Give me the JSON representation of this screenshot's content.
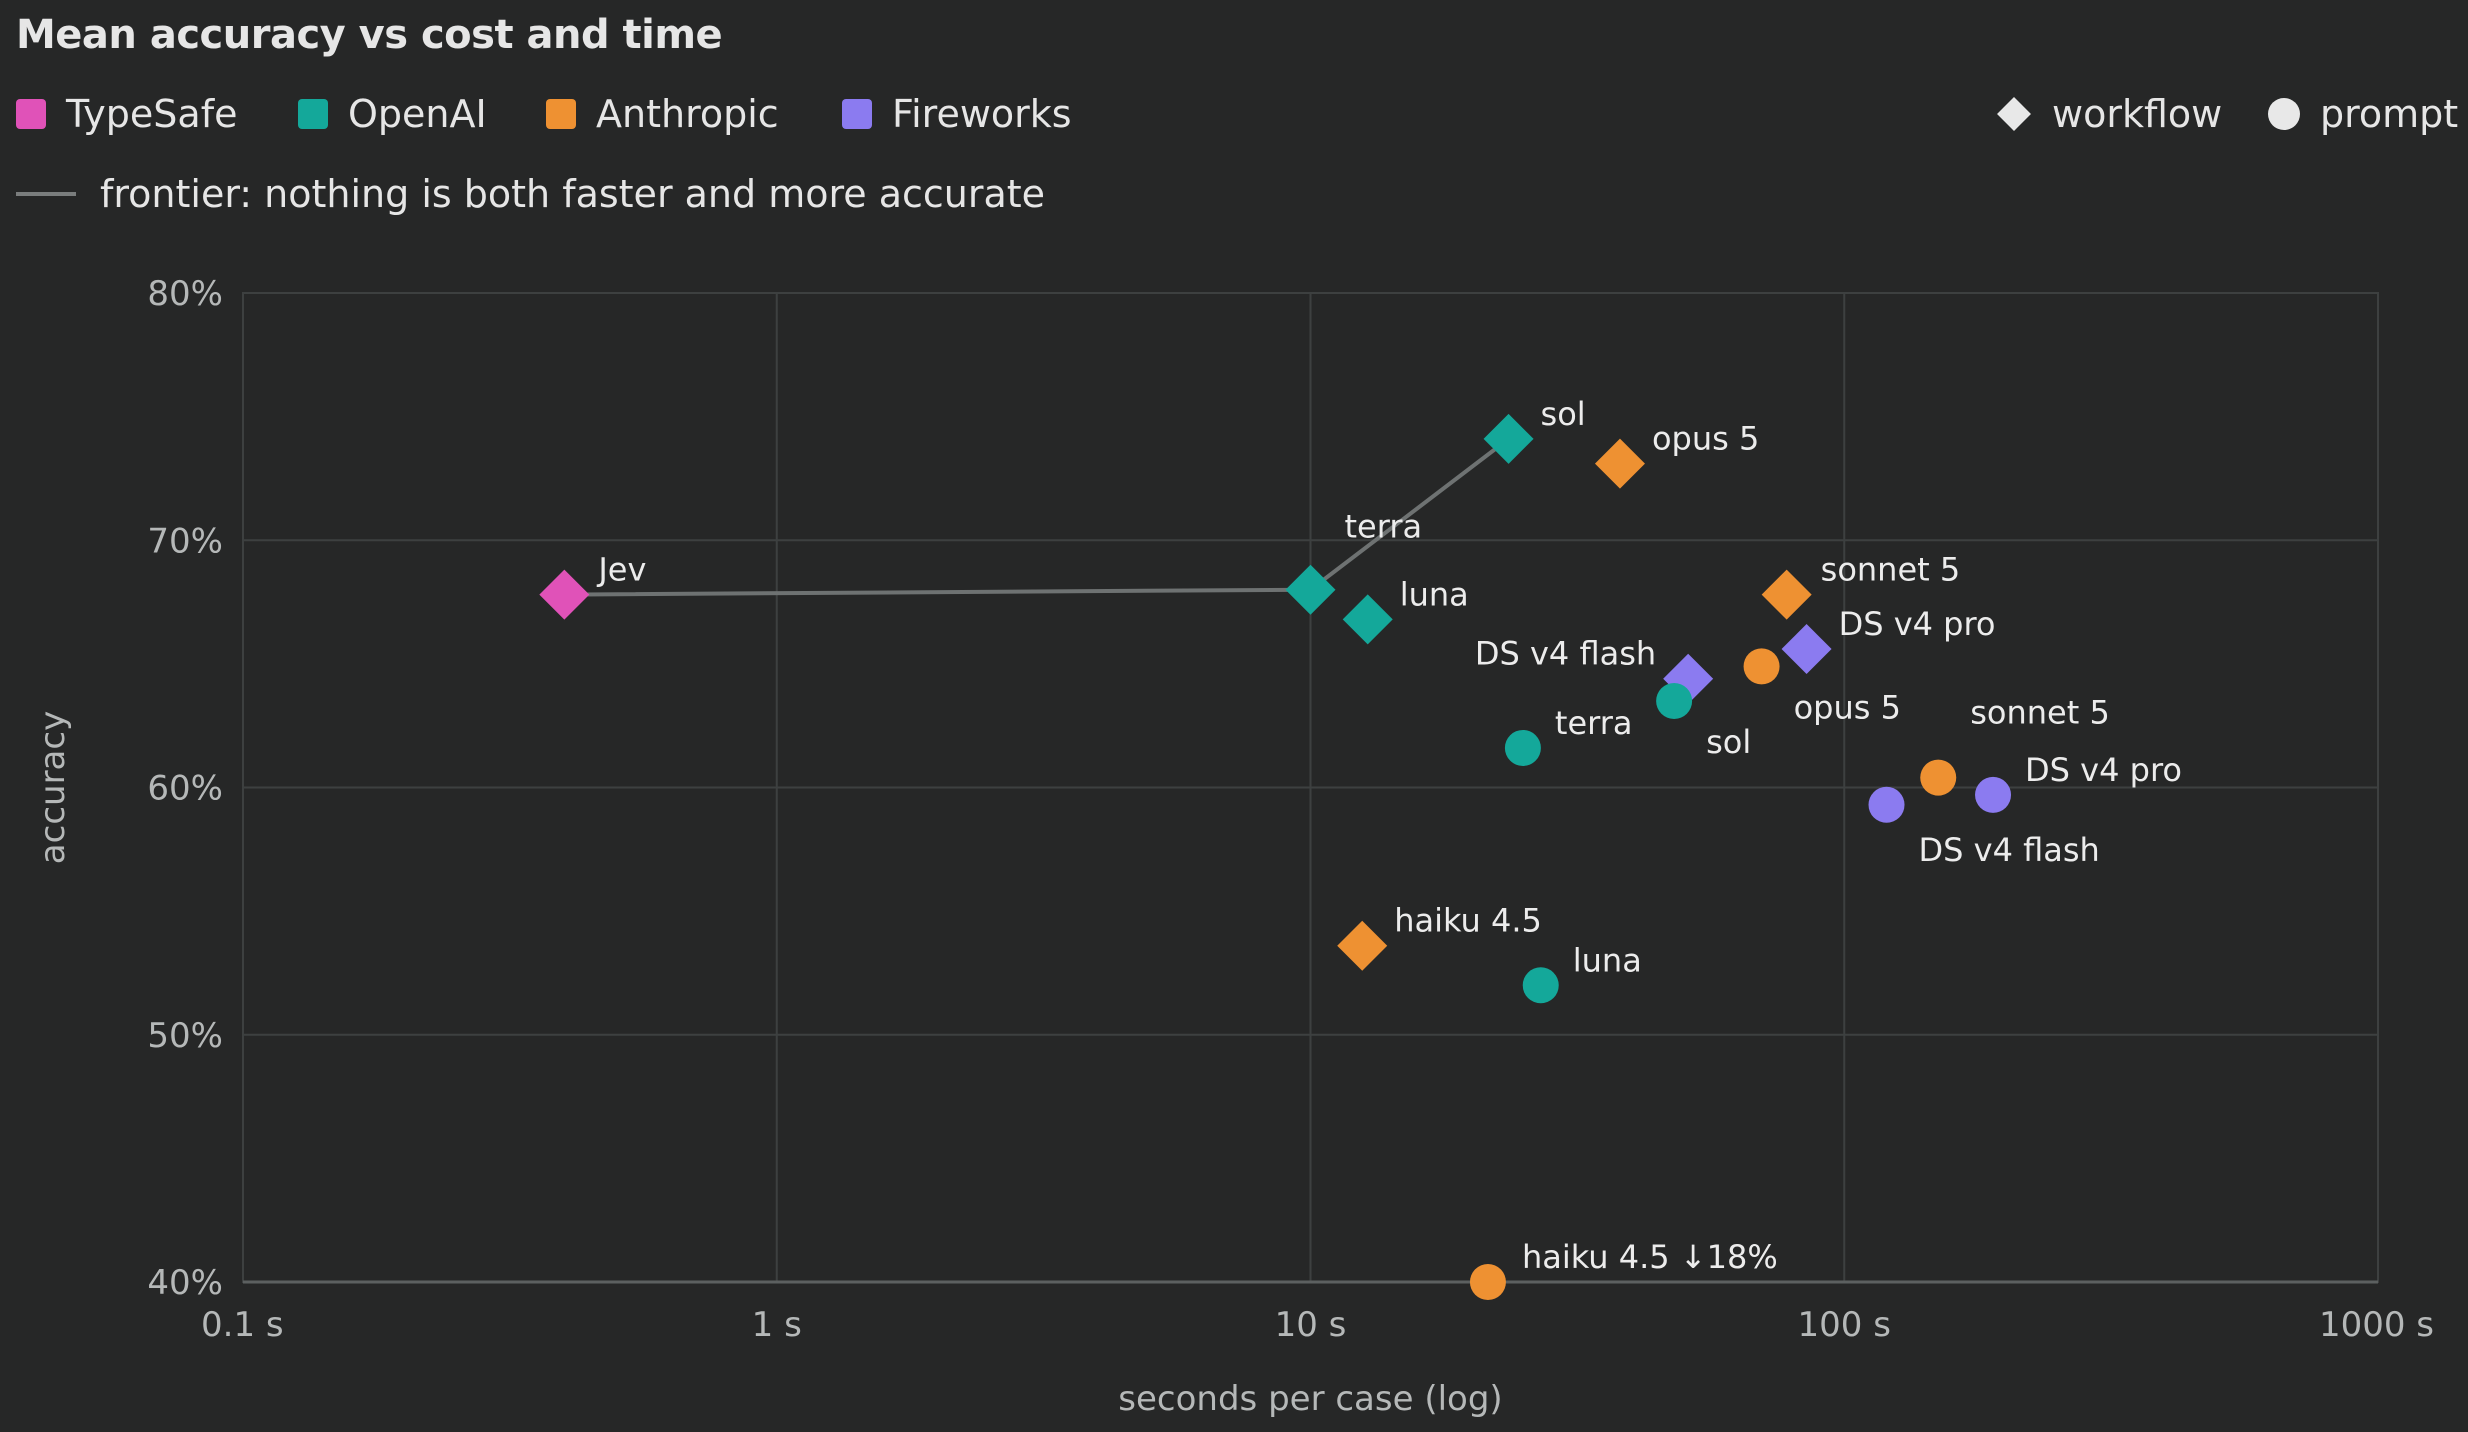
{
  "chart_data": {
    "type": "scatter",
    "title": "Mean accuracy vs cost and time",
    "xlabel": "seconds per case (log)",
    "ylabel": "accuracy",
    "xscale": "log",
    "xlim": [
      0.1,
      1000
    ],
    "ylim": [
      40,
      80
    ],
    "grid": true,
    "x_ticks": [
      {
        "value": 0.1,
        "label": "0.1 s"
      },
      {
        "value": 1,
        "label": "1 s"
      },
      {
        "value": 10,
        "label": "10 s"
      },
      {
        "value": 100,
        "label": "100 s"
      },
      {
        "value": 1000,
        "label": "1000 s"
      }
    ],
    "y_ticks": [
      {
        "value": 40,
        "label": "40%"
      },
      {
        "value": 50,
        "label": "50%"
      },
      {
        "value": 60,
        "label": "60%"
      },
      {
        "value": 70,
        "label": "70%"
      },
      {
        "value": 80,
        "label": "80%"
      }
    ],
    "legend_placement": "top",
    "groups": [
      {
        "name": "TypeSafe",
        "color": "#e052b8"
      },
      {
        "name": "OpenAI",
        "color": "#14a89a"
      },
      {
        "name": "Anthropic",
        "color": "#ee9132"
      },
      {
        "name": "Fireworks",
        "color": "#8b7bf0"
      }
    ],
    "shapes": [
      {
        "name": "workflow",
        "icon": "diamond-icon"
      },
      {
        "name": "prompt",
        "icon": "circle-icon"
      }
    ],
    "frontier_label": "frontier: nothing is both faster and more accurate",
    "frontier": [
      {
        "x": 0.4,
        "y": 67.8
      },
      {
        "x": 10.0,
        "y": 68.0
      },
      {
        "x": 23.5,
        "y": 74.1
      }
    ],
    "points": [
      {
        "label": "Jev",
        "group": "TypeSafe",
        "shape": "workflow",
        "x": 0.4,
        "y": 67.8
      },
      {
        "label": "terra",
        "group": "OpenAI",
        "shape": "workflow",
        "x": 10.0,
        "y": 68.0
      },
      {
        "label": "luna",
        "group": "OpenAI",
        "shape": "workflow",
        "x": 12.8,
        "y": 66.8
      },
      {
        "label": "sol",
        "group": "OpenAI",
        "shape": "workflow",
        "x": 23.5,
        "y": 74.1
      },
      {
        "label": "opus 5",
        "group": "Anthropic",
        "shape": "workflow",
        "x": 38.0,
        "y": 73.1
      },
      {
        "label": "sonnet 5",
        "group": "Anthropic",
        "shape": "workflow",
        "x": 78.0,
        "y": 67.8
      },
      {
        "label": "haiku 4.5",
        "group": "Anthropic",
        "shape": "workflow",
        "x": 12.5,
        "y": 53.6
      },
      {
        "label": "DS v4 flash",
        "group": "Fireworks",
        "shape": "workflow",
        "x": 51.0,
        "y": 64.4
      },
      {
        "label": "DS v4 pro",
        "group": "Fireworks",
        "shape": "workflow",
        "x": 85.0,
        "y": 65.6
      },
      {
        "label": "terra",
        "group": "OpenAI",
        "shape": "prompt",
        "x": 25.0,
        "y": 61.6
      },
      {
        "label": "sol",
        "group": "OpenAI",
        "shape": "prompt",
        "x": 48.0,
        "y": 63.5
      },
      {
        "label": "luna",
        "group": "OpenAI",
        "shape": "prompt",
        "x": 27.0,
        "y": 52.0
      },
      {
        "label": "opus 5",
        "group": "Anthropic",
        "shape": "prompt",
        "x": 70.0,
        "y": 64.9
      },
      {
        "label": "sonnet 5",
        "group": "Anthropic",
        "shape": "prompt",
        "x": 150.0,
        "y": 60.4
      },
      {
        "label": "haiku 4.5 ↓18%",
        "group": "Anthropic",
        "shape": "prompt",
        "x": 21.5,
        "y": 40.0
      },
      {
        "label": "DS v4 flash",
        "group": "Fireworks",
        "shape": "prompt",
        "x": 120.0,
        "y": 59.3
      },
      {
        "label": "DS v4 pro",
        "group": "Fireworks",
        "shape": "prompt",
        "x": 190.0,
        "y": 59.7
      }
    ]
  }
}
